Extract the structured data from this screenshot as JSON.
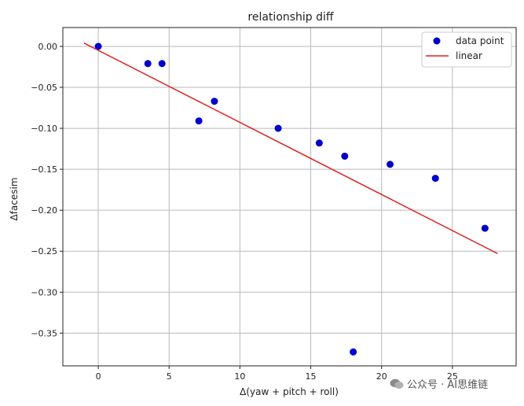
{
  "chart_data": {
    "type": "scatter",
    "title": "relationship diff",
    "xlabel": "Δ(yaw + pitch + roll)",
    "ylabel": "Δfacesim",
    "xlim": [
      -2.5,
      29.5
    ],
    "ylim": [
      -0.39,
      0.023
    ],
    "xticks": [
      0,
      5,
      10,
      15,
      20,
      25
    ],
    "xtick_labels": [
      "0",
      "5",
      "10",
      "15",
      "20",
      "25"
    ],
    "yticks": [
      0.0,
      -0.05,
      -0.1,
      -0.15,
      -0.2,
      -0.25,
      -0.3,
      -0.35
    ],
    "ytick_labels": [
      "0.00",
      "−0.05",
      "−0.10",
      "−0.15",
      "−0.20",
      "−0.25",
      "−0.30",
      "−0.35"
    ],
    "grid": true,
    "legend_position": "top-right",
    "series": [
      {
        "name": "data point",
        "kind": "scatter",
        "color": "#0000cc",
        "x": [
          0.0,
          3.5,
          4.5,
          7.1,
          8.2,
          12.7,
          15.6,
          17.4,
          18.0,
          20.6,
          23.8,
          27.3
        ],
        "y": [
          0.0,
          -0.021,
          -0.021,
          -0.091,
          -0.067,
          -0.1,
          -0.118,
          -0.134,
          -0.373,
          -0.144,
          -0.161,
          -0.222
        ]
      },
      {
        "name": "linear",
        "kind": "line",
        "color": "#e02020",
        "x": [
          -1.0,
          28.2
        ],
        "y": [
          0.004,
          -0.253
        ]
      }
    ]
  },
  "watermark": {
    "icon": "wechat-icon",
    "text": "公众号 · AI思维链"
  }
}
